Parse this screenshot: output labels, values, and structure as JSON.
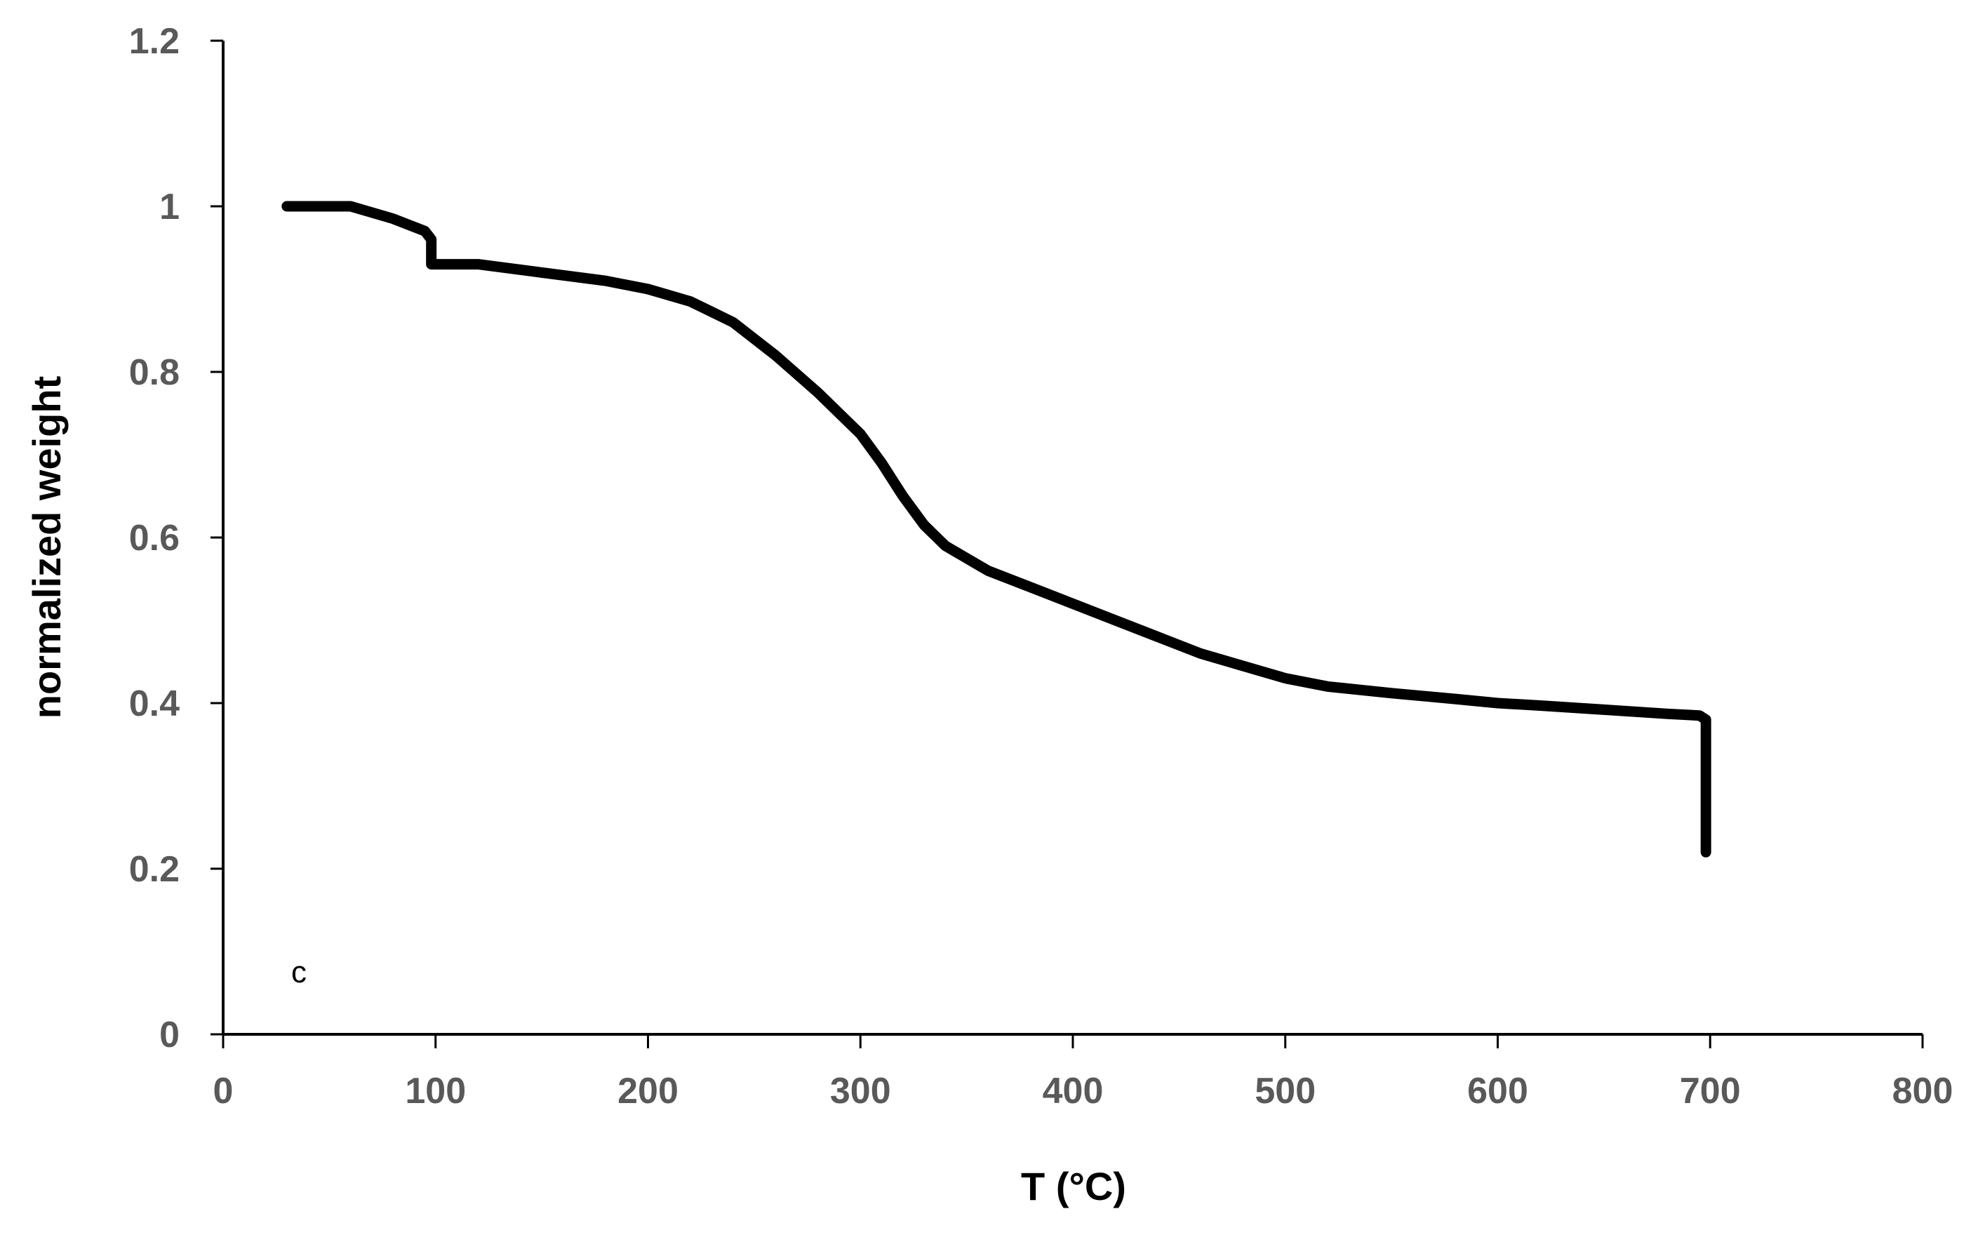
{
  "chart_data": {
    "type": "line",
    "title": "",
    "xlabel": "T (°C)",
    "ylabel": "normalized weight",
    "xlim": [
      0,
      800
    ],
    "ylim": [
      0,
      1.2
    ],
    "x_ticks": [
      "0",
      "100",
      "200",
      "300",
      "400",
      "500",
      "600",
      "700",
      "800"
    ],
    "y_ticks": [
      "0",
      "0.2",
      "0.4",
      "0.6",
      "0.8",
      "1",
      "1.2"
    ],
    "grid": false,
    "legend": "none",
    "annotation": "c",
    "series": [
      {
        "color": "#000000",
        "x": [
          30,
          40,
          60,
          80,
          95,
          98,
          98,
          100,
          120,
          150,
          180,
          200,
          220,
          240,
          260,
          280,
          300,
          310,
          320,
          330,
          340,
          360,
          380,
          400,
          420,
          440,
          460,
          480,
          500,
          520,
          550,
          580,
          600,
          620,
          650,
          680,
          695,
          698,
          698
        ],
        "y": [
          1.0,
          1.0,
          1.0,
          0.985,
          0.97,
          0.96,
          0.93,
          0.93,
          0.93,
          0.92,
          0.91,
          0.9,
          0.885,
          0.86,
          0.82,
          0.775,
          0.725,
          0.69,
          0.65,
          0.615,
          0.59,
          0.56,
          0.54,
          0.52,
          0.5,
          0.48,
          0.46,
          0.445,
          0.43,
          0.42,
          0.412,
          0.405,
          0.4,
          0.397,
          0.392,
          0.387,
          0.385,
          0.38,
          0.22
        ]
      }
    ]
  }
}
